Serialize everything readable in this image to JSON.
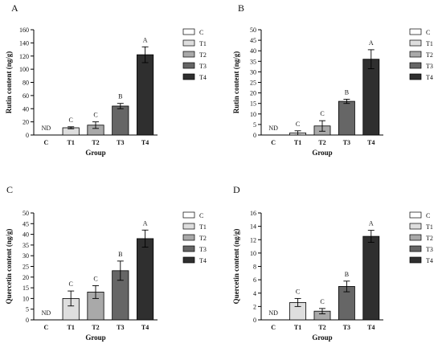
{
  "chart_data": [
    {
      "panel_label": "A",
      "type": "bar",
      "categories": [
        "C",
        "T1",
        "T2",
        "T3",
        "T4"
      ],
      "values": [
        0,
        11,
        15,
        44,
        122
      ],
      "errors": [
        0,
        1.5,
        5,
        4,
        12
      ],
      "bar_labels": [
        "ND",
        "C",
        "C",
        "B",
        "A"
      ],
      "colors": [
        "#ffffff",
        "#dedede",
        "#a9a9a9",
        "#666666",
        "#2f2f2f"
      ],
      "xlabel": "Group",
      "ylabel": "Rutin content (ng/g)",
      "ylim": [
        0,
        160
      ],
      "yticks": [
        0,
        20,
        40,
        60,
        80,
        100,
        120,
        140,
        160
      ],
      "legend": [
        "C",
        "T1",
        "T2",
        "T3",
        "T4"
      ],
      "legend_position": "right"
    },
    {
      "panel_label": "B",
      "type": "bar",
      "categories": [
        "C",
        "T1",
        "T2",
        "T3",
        "T4"
      ],
      "values": [
        0,
        1,
        4.3,
        16,
        36
      ],
      "errors": [
        0,
        1,
        2.5,
        1,
        4.5
      ],
      "bar_labels": [
        "ND",
        "C",
        "C",
        "B",
        "A"
      ],
      "colors": [
        "#ffffff",
        "#dedede",
        "#a9a9a9",
        "#666666",
        "#2f2f2f"
      ],
      "xlabel": "Group",
      "ylabel": "Rutin content (ng/g)",
      "ylim": [
        0,
        50
      ],
      "yticks": [
        0,
        5,
        10,
        15,
        20,
        25,
        30,
        35,
        40,
        45,
        50
      ],
      "legend": [
        "C",
        "T1",
        "T2",
        "T3",
        "T4"
      ],
      "legend_position": "right"
    },
    {
      "panel_label": "C",
      "type": "bar",
      "categories": [
        "C",
        "T1",
        "T2",
        "T3",
        "T4"
      ],
      "values": [
        0,
        10,
        13,
        23,
        38
      ],
      "errors": [
        0,
        3.5,
        3,
        4.5,
        4
      ],
      "bar_labels": [
        "ND",
        "C",
        "C",
        "B",
        "A"
      ],
      "colors": [
        "#ffffff",
        "#dedede",
        "#a9a9a9",
        "#666666",
        "#2f2f2f"
      ],
      "xlabel": "Group",
      "ylabel": "Quercetin content (ng/g)",
      "ylim": [
        0,
        50
      ],
      "yticks": [
        0,
        5,
        10,
        15,
        20,
        25,
        30,
        35,
        40,
        45,
        50
      ],
      "legend": [
        "C",
        "T1",
        "T2",
        "T3",
        "T4"
      ],
      "legend_position": "right"
    },
    {
      "panel_label": "D",
      "type": "bar",
      "categories": [
        "C",
        "T1",
        "T2",
        "T3",
        "T4"
      ],
      "values": [
        0,
        2.6,
        1.3,
        5,
        12.5
      ],
      "errors": [
        0,
        0.6,
        0.4,
        0.8,
        0.9
      ],
      "bar_labels": [
        "ND",
        "C",
        "C",
        "B",
        "A"
      ],
      "colors": [
        "#ffffff",
        "#dedede",
        "#a9a9a9",
        "#666666",
        "#2f2f2f"
      ],
      "xlabel": "Group",
      "ylabel": "Quercetin content (ng/g)",
      "ylim": [
        0,
        16
      ],
      "yticks": [
        0,
        2,
        4,
        6,
        8,
        10,
        12,
        14,
        16
      ],
      "legend": [
        "C",
        "T1",
        "T2",
        "T3",
        "T4"
      ],
      "legend_position": "right"
    }
  ]
}
